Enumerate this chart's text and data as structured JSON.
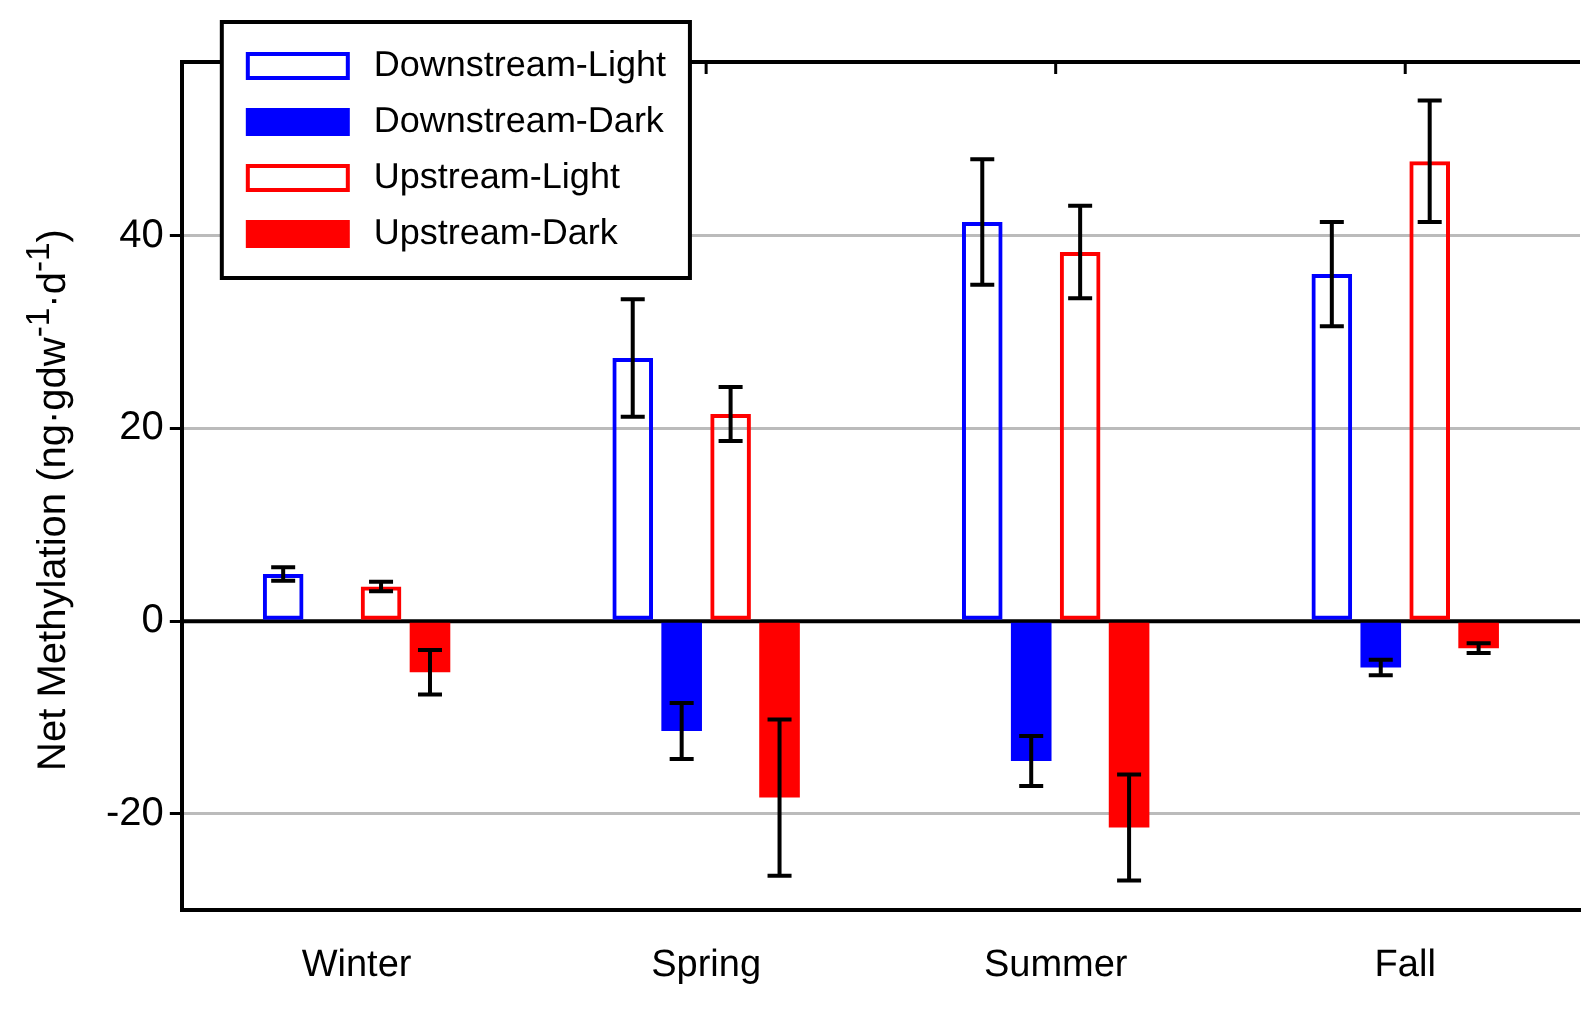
{
  "chart_data": {
    "type": "bar",
    "ylabel": "Net Methylation (ng·gdw$^{-1}$·d$^{-1}$)",
    "categories": [
      "Winter",
      "Spring",
      "Summer",
      "Fall"
    ],
    "series": [
      {
        "name": "Downstream-Light",
        "color": "#0000ff",
        "values": [
          4.9,
          27.3,
          41.4,
          36
        ],
        "errors": [
          0.7,
          6.1,
          6.5,
          5.4
        ]
      },
      {
        "name": "Downstream-Dark",
        "color": "#0000ff",
        "values": [
          null,
          -11.4,
          -14.5,
          -4.8
        ],
        "errors": [
          null,
          2.9,
          2.6,
          0.8
        ]
      },
      {
        "name": "Upstream-Light",
        "color": "#ff0000",
        "values": [
          3.6,
          21.5,
          38.3,
          47.7
        ],
        "errors": [
          0.5,
          2.8,
          4.8,
          6.3
        ]
      },
      {
        "name": "Upstream-Dark",
        "color": "#ff0000",
        "values": [
          -5.3,
          -18.3,
          -21.4,
          -2.8
        ],
        "errors": [
          2.3,
          8.1,
          5.5,
          0.5
        ]
      }
    ],
    "ylim": [
      -30,
      58
    ],
    "yticks": [
      -20,
      0,
      20,
      40
    ],
    "grid": "y",
    "legend": "top left"
  }
}
